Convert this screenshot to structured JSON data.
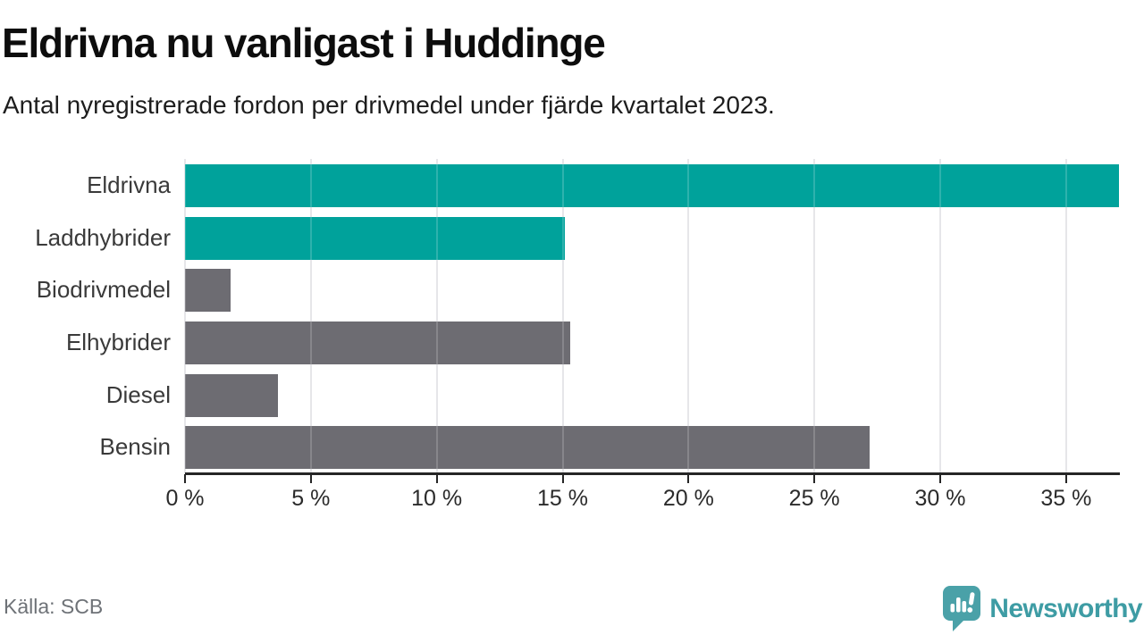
{
  "header": {
    "title": "Eldrivna nu vanligast i Huddinge",
    "subtitle": "Antal nyregistrerade fordon per drivmedel under fjärde kvartalet 2023."
  },
  "footer": {
    "source": "Källa: SCB",
    "brand_name": "Newsworthy",
    "brand_icon": "newsworthy-speech-bubble-bar-chart-icon"
  },
  "colors": {
    "highlight": "#00a29b",
    "neutral": "#6d6c72",
    "gridline": "#e1e1e4",
    "axis": "#262626",
    "brand_text": "#3e9ca4",
    "brand_icon": "#4aa1a8"
  },
  "chart_data": {
    "type": "bar",
    "orientation": "horizontal",
    "title": "Eldrivna nu vanligast i Huddinge",
    "subtitle": "Antal nyregistrerade fordon per drivmedel under fjärde kvartalet 2023.",
    "categories": [
      "Eldrivna",
      "Laddhybrider",
      "Biodrivmedel",
      "Elhybrider",
      "Diesel",
      "Bensin"
    ],
    "series": [
      {
        "name": "Andel nyregistrerade fordon (%)",
        "values": [
          37.1,
          15.1,
          1.8,
          15.3,
          3.7,
          27.2
        ]
      }
    ],
    "bar_colors": [
      "#00a29b",
      "#00a29b",
      "#6d6c72",
      "#6d6c72",
      "#6d6c72",
      "#6d6c72"
    ],
    "highlighted_categories": [
      "Eldrivna",
      "Laddhybrider"
    ],
    "unit": "%",
    "xlim": [
      0,
      37.1
    ],
    "x_ticks": [
      0,
      5,
      10,
      15,
      20,
      25,
      30,
      35
    ],
    "x_tick_labels": [
      "0 %",
      "5 %",
      "10 %",
      "15 %",
      "20 %",
      "25 %",
      "30 %",
      "35 %"
    ],
    "grid": true,
    "legend": false
  }
}
